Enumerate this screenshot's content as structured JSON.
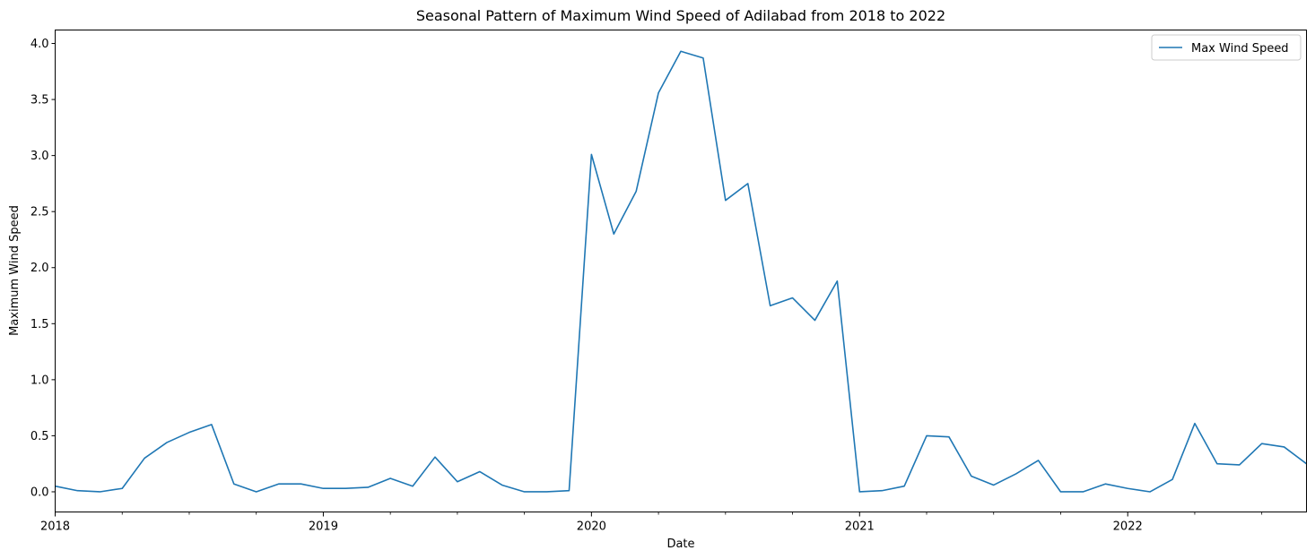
{
  "chart_data": {
    "type": "line",
    "title": "Seasonal Pattern of Maximum Wind Speed of Adilabad from 2018 to 2022",
    "xlabel": "Date",
    "ylabel": "Maximum Wind Speed",
    "xlim": [
      "2018-01",
      "2022-09"
    ],
    "ylim": [
      -0.18,
      4.12
    ],
    "x_tick_labels": [
      "2018",
      "2019",
      "2020",
      "2021",
      "2022"
    ],
    "x_minor_ticks": "quarterly",
    "y_ticks": [
      0.0,
      0.5,
      1.0,
      1.5,
      2.0,
      2.5,
      3.0,
      3.5,
      4.0
    ],
    "y_tick_labels": [
      "0.0",
      "0.5",
      "1.0",
      "1.5",
      "2.0",
      "2.5",
      "3.0",
      "3.5",
      "4.0"
    ],
    "grid": false,
    "legend_position": "top-right",
    "color": "#1f77b4",
    "series": [
      {
        "name": "Max Wind Speed",
        "x": [
          "2018-01",
          "2018-02",
          "2018-03",
          "2018-04",
          "2018-05",
          "2018-06",
          "2018-07",
          "2018-08",
          "2018-09",
          "2018-10",
          "2018-11",
          "2018-12",
          "2019-01",
          "2019-02",
          "2019-03",
          "2019-04",
          "2019-05",
          "2019-06",
          "2019-07",
          "2019-08",
          "2019-09",
          "2019-10",
          "2019-11",
          "2019-12",
          "2020-01",
          "2020-02",
          "2020-03",
          "2020-04",
          "2020-05",
          "2020-06",
          "2020-07",
          "2020-08",
          "2020-09",
          "2020-10",
          "2020-11",
          "2020-12",
          "2021-01",
          "2021-02",
          "2021-03",
          "2021-04",
          "2021-05",
          "2021-06",
          "2021-07",
          "2021-08",
          "2021-09",
          "2021-10",
          "2021-11",
          "2021-12",
          "2022-01",
          "2022-02",
          "2022-03",
          "2022-04",
          "2022-05",
          "2022-06",
          "2022-07",
          "2022-08",
          "2022-09"
        ],
        "values": [
          0.05,
          0.01,
          0.0,
          0.03,
          0.3,
          0.44,
          0.53,
          0.6,
          0.07,
          0.0,
          0.07,
          0.07,
          0.03,
          0.03,
          0.04,
          0.12,
          0.05,
          0.31,
          0.09,
          0.18,
          0.06,
          0.0,
          0.0,
          0.01,
          3.01,
          2.3,
          2.68,
          3.56,
          3.93,
          3.87,
          2.6,
          2.75,
          1.66,
          1.73,
          1.53,
          1.88,
          0.0,
          0.01,
          0.05,
          0.5,
          0.49,
          0.14,
          0.06,
          0.16,
          0.28,
          0.0,
          0.0,
          0.07,
          0.03,
          0.0,
          0.11,
          0.61,
          0.25,
          0.24,
          0.43,
          0.4,
          0.25
        ]
      }
    ]
  }
}
